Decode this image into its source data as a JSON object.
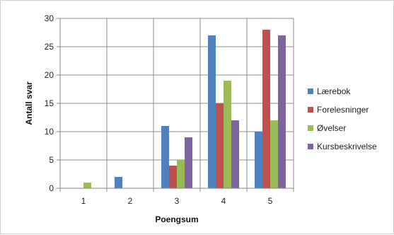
{
  "chart_data": {
    "type": "bar",
    "categories": [
      "1",
      "2",
      "3",
      "4",
      "5"
    ],
    "series": [
      {
        "name": "Lærebok",
        "values": [
          0,
          2,
          11,
          27,
          10
        ],
        "color": "#4F81BD"
      },
      {
        "name": "Forelesninger",
        "values": [
          0,
          0,
          4,
          15,
          28
        ],
        "color": "#C0504D"
      },
      {
        "name": "Øvelser",
        "values": [
          1,
          0,
          5,
          19,
          12
        ],
        "color": "#9BBB59"
      },
      {
        "name": "Kursbeskrivelse",
        "values": [
          0,
          0,
          9,
          12,
          27
        ],
        "color": "#8064A2"
      }
    ],
    "title": "",
    "xlabel": "Poengsum",
    "ylabel": "Antall svar",
    "ylim": [
      0,
      30
    ],
    "yticks": [
      0,
      5,
      10,
      15,
      20,
      25,
      30
    ],
    "grid": true,
    "legend_position": "right"
  }
}
